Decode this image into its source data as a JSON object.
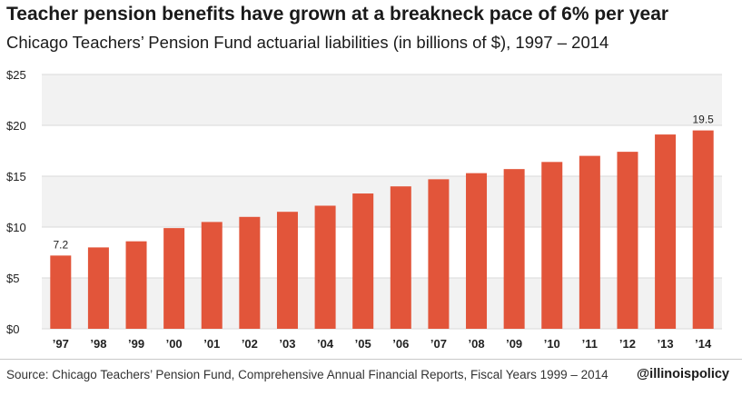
{
  "colors": {
    "bar": "#e2553a",
    "band": "#f2f2f2",
    "grid": "#d9d9d9",
    "text": "#222222"
  },
  "footer": {
    "source": "Source: Chicago Teachers’ Pension Fund, Comprehensive Annual Financial Reports, Fiscal Years 1999 – 2014",
    "handle": "@illinoispolicy"
  },
  "chart_data": {
    "type": "bar",
    "title": "Teacher pension benefits have grown at a breakneck pace of 6% per year",
    "subtitle": "Chicago Teachers’ Pension Fund actuarial liabilities (in billions of $), 1997 – 2014",
    "categories": [
      "’97",
      "’98",
      "’99",
      "’00",
      "’01",
      "’02",
      "’03",
      "’04",
      "’05",
      "’06",
      "’07",
      "’08",
      "’09",
      "’10",
      "’11",
      "’12",
      "’13",
      "’14"
    ],
    "values": [
      7.2,
      8.0,
      8.6,
      9.9,
      10.5,
      11.0,
      11.5,
      12.1,
      13.3,
      14.0,
      14.7,
      15.3,
      15.7,
      16.4,
      17.0,
      17.4,
      19.1,
      19.5
    ],
    "ylim": [
      0,
      25
    ],
    "yticks": [
      0,
      5,
      10,
      15,
      20,
      25
    ],
    "ytick_labels": [
      "$0",
      "$5",
      "$10",
      "$15",
      "$20",
      "$25"
    ],
    "data_labels": [
      {
        "index": 0,
        "text": "7.2"
      },
      {
        "index": 17,
        "text": "19.5"
      }
    ],
    "grid": true,
    "alternating_bands": true,
    "legend": "none"
  }
}
